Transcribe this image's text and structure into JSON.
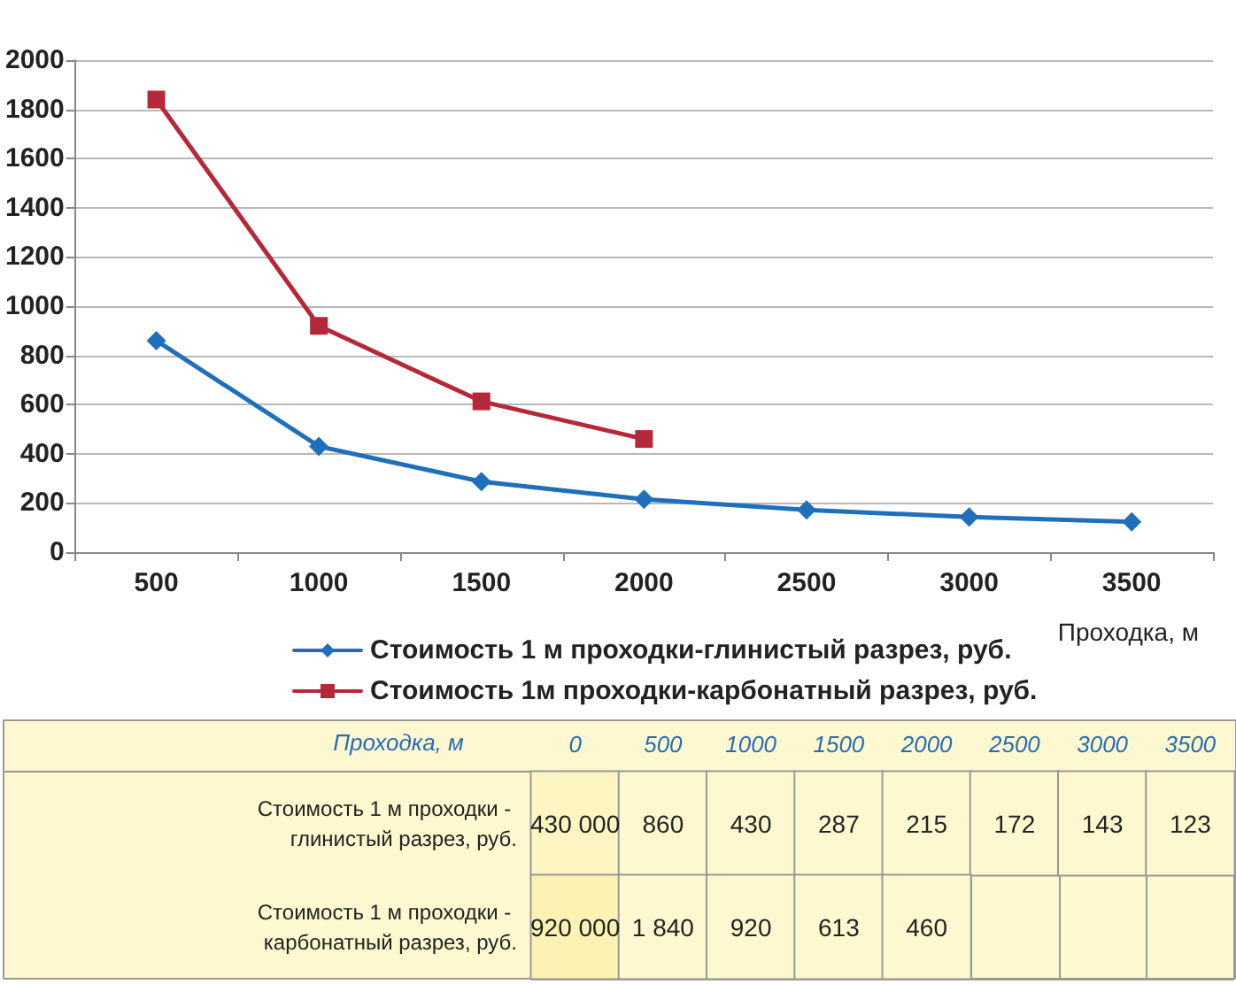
{
  "chart_data": [
    {
      "type": "line",
      "xlabel": "Проходка, м",
      "categories": [
        "500",
        "1000",
        "1500",
        "2000",
        "2500",
        "3000",
        "3500"
      ],
      "series": [
        {
          "name": "Стоимость 1 м проходки-глинистый разрез, руб.",
          "color": "#1f6fba",
          "marker": "diamond",
          "values": [
            860,
            430,
            287,
            215,
            172,
            143,
            123
          ]
        },
        {
          "name": "Стоимость 1м проходки-карбонатный разрез, руб.",
          "color": "#b5283a",
          "marker": "square",
          "values": [
            1840,
            920,
            613,
            460,
            null,
            null,
            null
          ]
        }
      ],
      "ylim": [
        0,
        2000
      ],
      "yticks": [
        0,
        200,
        400,
        600,
        800,
        1000,
        1200,
        1400,
        1600,
        1800,
        2000
      ],
      "grid": "y",
      "legend": "bottom",
      "line_style": "solid"
    },
    {
      "type": "heatmap",
      "ylabel": "Проходка, м",
      "categories": [
        "0",
        "500",
        "1000",
        "1500",
        "2000",
        "2500",
        "3000",
        "3500"
      ],
      "y_categories": [
        "Стоимость 1 м проходки - глинистый разрез, руб.",
        "Стоимость 1 м проходки - карбонатный разрез, руб."
      ],
      "cells": [
        [
          430000,
          860,
          430,
          287,
          215,
          172,
          143,
          123
        ],
        [
          920000,
          1840,
          920,
          613,
          460,
          null,
          null,
          null
        ]
      ],
      "cell_labels": [
        [
          "430 000",
          "860",
          "430",
          "287",
          "215",
          "172",
          "143",
          "123"
        ],
        [
          "920 000",
          "1 840",
          "920",
          "613",
          "460",
          null,
          null,
          null
        ]
      ]
    }
  ]
}
